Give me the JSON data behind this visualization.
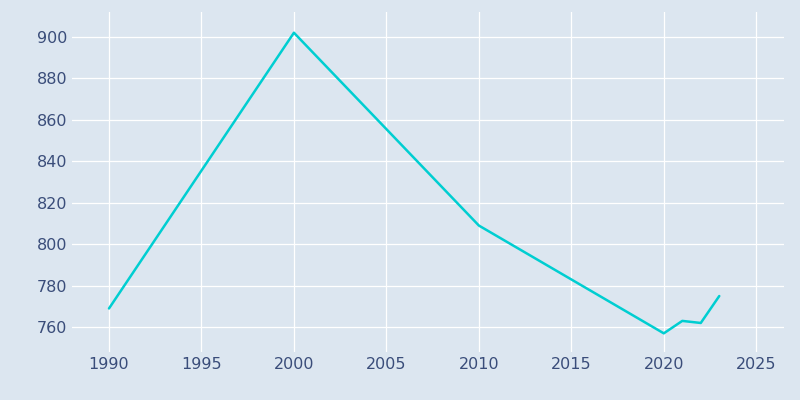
{
  "years": [
    1990,
    2000,
    2010,
    2020,
    2021,
    2022,
    2023
  ],
  "population": [
    769,
    902,
    809,
    757,
    763,
    762,
    775
  ],
  "line_color": "#00CED1",
  "plot_bg_color": "#dce6f0",
  "fig_bg_color": "#dce6f0",
  "grid_color": "#ffffff",
  "xlabel": "",
  "ylabel": "",
  "xlim": [
    1988,
    2026.5
  ],
  "ylim": [
    748,
    912
  ],
  "yticks": [
    760,
    780,
    800,
    820,
    840,
    860,
    880,
    900
  ],
  "xticks": [
    1990,
    1995,
    2000,
    2005,
    2010,
    2015,
    2020,
    2025
  ],
  "linewidth": 1.8,
  "figsize": [
    8.0,
    4.0
  ],
  "dpi": 100,
  "tick_label_color": "#3a4d7a",
  "tick_label_size": 11.5
}
